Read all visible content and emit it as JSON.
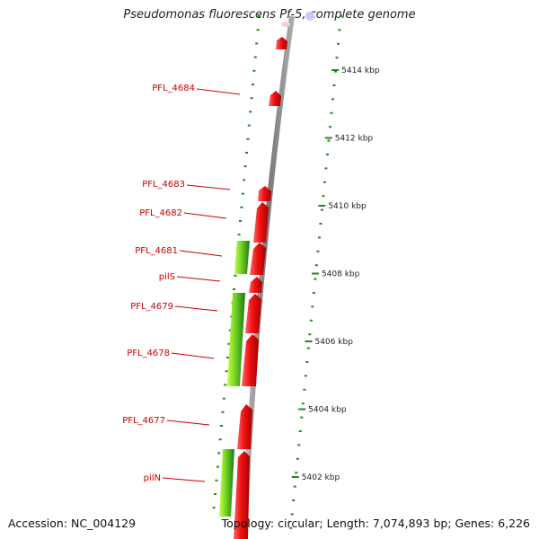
{
  "title": "Pseudomonas fluorescens Pf-5, complete genome",
  "footer": {
    "accession": "Accession: NC_004129",
    "topology": "Topology: circular; Length: 7,074,893 bp; Genes: 6,226"
  },
  "colors": {
    "gene_forward": "#ee1111",
    "gene_feature": "#66cc22",
    "gene_feature_light": "#ccff44",
    "backbone": "#888888",
    "tick": "#228822",
    "label": "#cc0000"
  },
  "scale_labels": [
    {
      "kbp": 5414,
      "text": "5414 kbp"
    },
    {
      "kbp": 5412,
      "text": "5412 kbp"
    },
    {
      "kbp": 5410,
      "text": "5410 kbp"
    },
    {
      "kbp": 5408,
      "text": "5408 kbp"
    },
    {
      "kbp": 5406,
      "text": "5406 kbp"
    },
    {
      "kbp": 5404,
      "text": "5404 kbp"
    },
    {
      "kbp": 5402,
      "text": "5402 kbp"
    }
  ],
  "gene_labels": [
    {
      "name": "PFL_4684"
    },
    {
      "name": "PFL_4683"
    },
    {
      "name": "PFL_4682"
    },
    {
      "name": "PFL_4681"
    },
    {
      "name": "pilS"
    },
    {
      "name": "PFL_4679"
    },
    {
      "name": "PFL_4678"
    },
    {
      "name": "PFL_4677"
    },
    {
      "name": "pilN"
    }
  ]
}
